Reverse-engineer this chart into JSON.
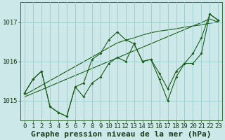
{
  "title": "Graphe pression niveau de la mer (hPa)",
  "hours": [
    0,
    1,
    2,
    3,
    4,
    5,
    6,
    7,
    8,
    9,
    10,
    11,
    12,
    13,
    14,
    15,
    16,
    17,
    18,
    19,
    20,
    21,
    22,
    23
  ],
  "main_line": [
    1015.2,
    1015.55,
    1015.75,
    1014.85,
    1014.7,
    1014.6,
    1015.35,
    1015.45,
    1016.05,
    1016.2,
    1016.55,
    1016.75,
    1016.55,
    1016.45,
    1016.0,
    1016.05,
    1015.7,
    1015.3,
    1015.75,
    1015.95,
    1016.2,
    1016.6,
    1017.2,
    1017.05
  ],
  "second_line": [
    1015.2,
    1015.55,
    1015.75,
    1014.85,
    1014.7,
    1014.6,
    1015.35,
    1015.1,
    1015.45,
    1015.6,
    1015.95,
    1016.1,
    1016.0,
    1016.45,
    1016.0,
    1016.05,
    1015.55,
    1015.0,
    1015.6,
    1015.95,
    1015.95,
    1016.2,
    1017.2,
    1017.05
  ],
  "trend_line1": [
    1015.15,
    1015.27,
    1015.39,
    1015.51,
    1015.63,
    1015.75,
    1015.87,
    1015.99,
    1016.11,
    1016.23,
    1016.35,
    1016.47,
    1016.54,
    1016.6,
    1016.67,
    1016.73,
    1016.77,
    1016.8,
    1016.83,
    1016.87,
    1016.9,
    1016.93,
    1016.97,
    1017.0
  ],
  "trend_line2": [
    1015.1,
    1015.19,
    1015.28,
    1015.37,
    1015.46,
    1015.55,
    1015.64,
    1015.73,
    1015.82,
    1015.91,
    1016.0,
    1016.09,
    1016.18,
    1016.27,
    1016.36,
    1016.45,
    1016.54,
    1016.63,
    1016.72,
    1016.81,
    1016.9,
    1016.99,
    1017.08,
    1017.0
  ],
  "ylim_min": 1014.5,
  "ylim_max": 1017.5,
  "yticks": [
    1015,
    1016,
    1017
  ],
  "bg_color": "#cce8e8",
  "grid_color": "#99cccc",
  "line_color": "#1a5c1a",
  "tick_fontsize": 6.5,
  "label_fontsize": 8.0
}
